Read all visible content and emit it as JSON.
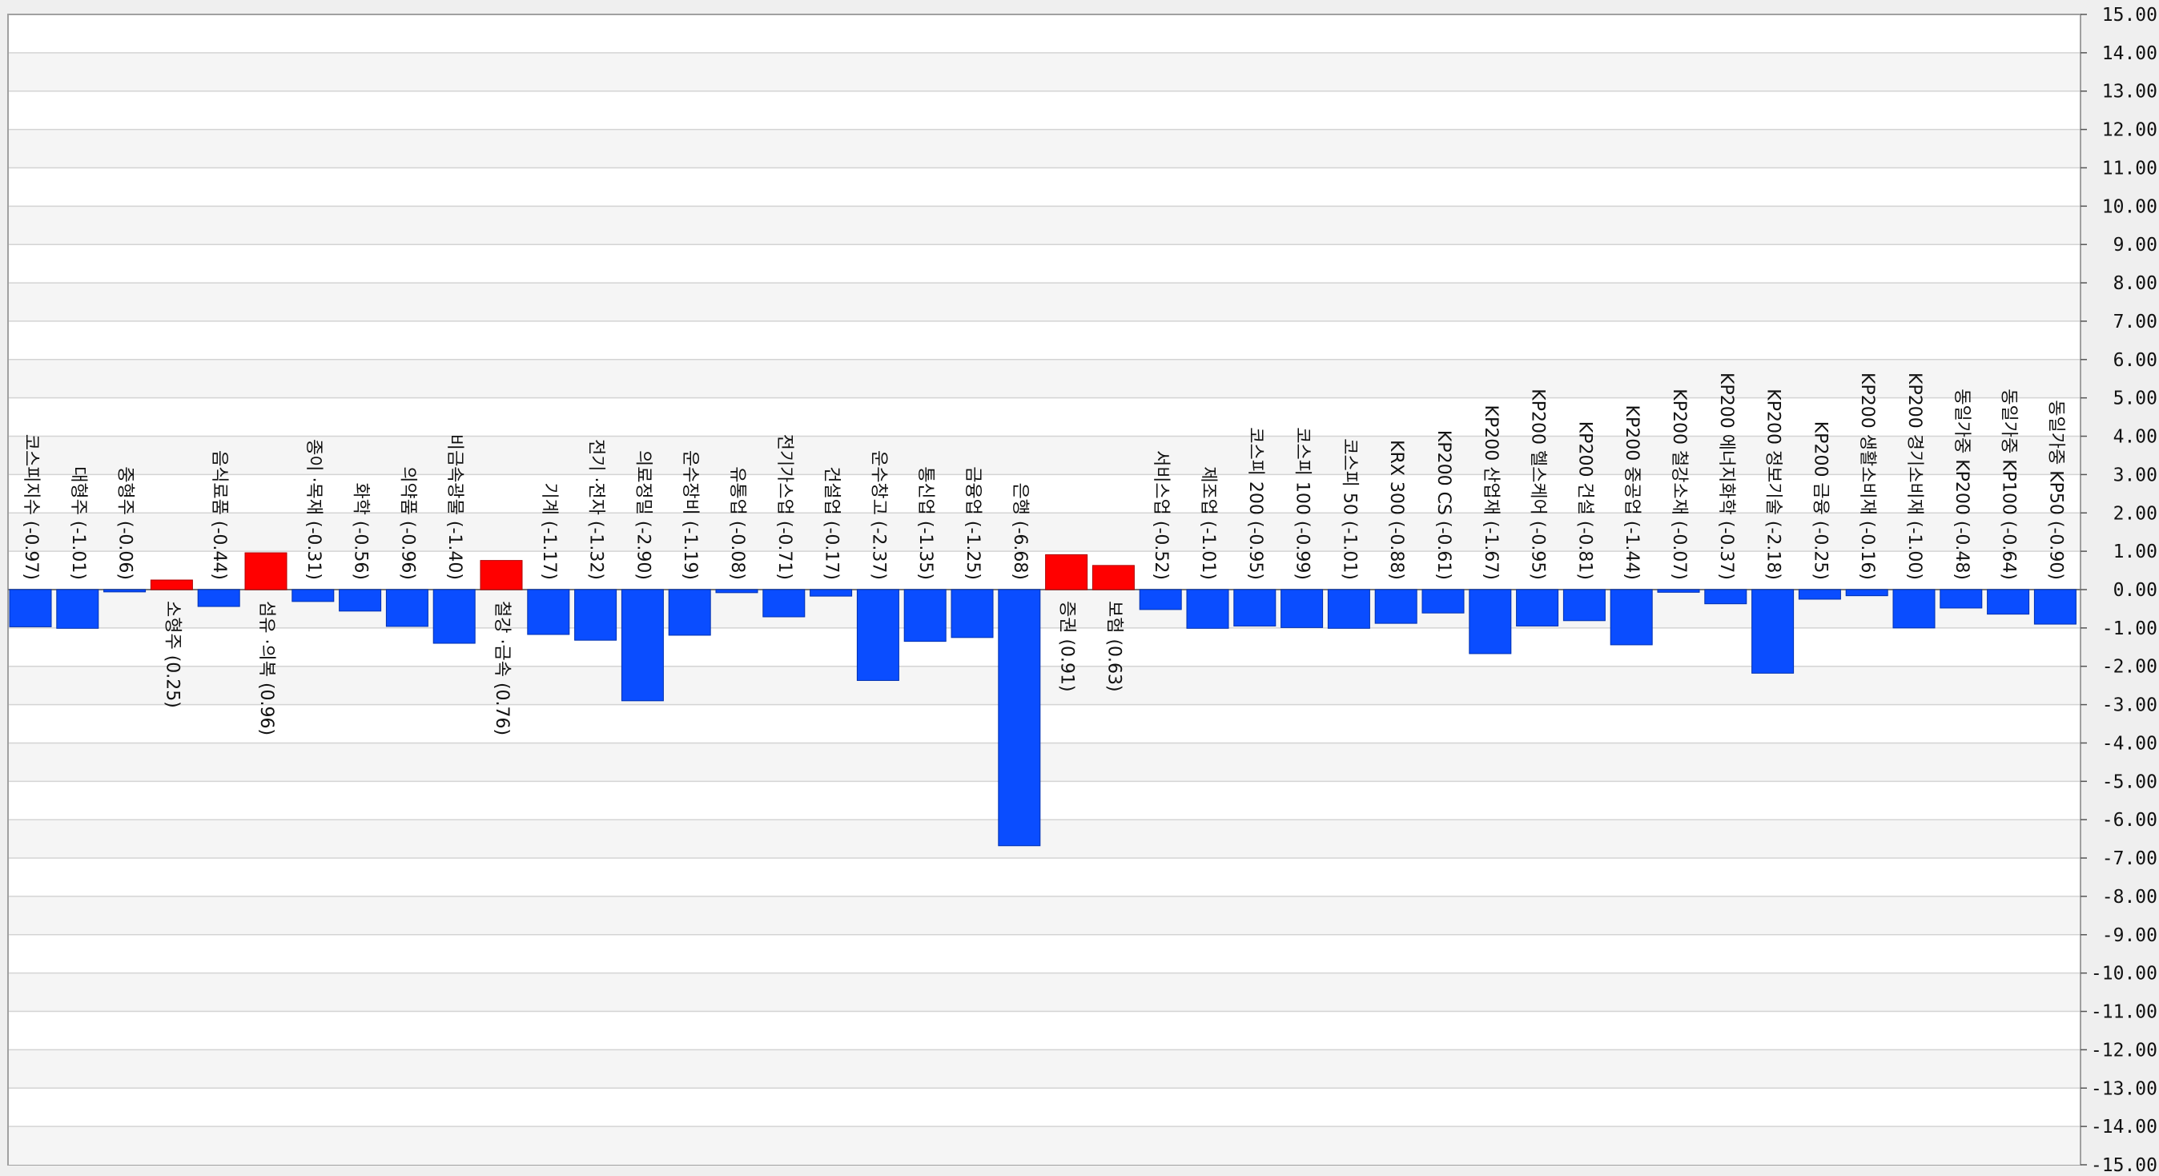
{
  "chart_data": {
    "type": "bar",
    "title": "",
    "xlabel": "",
    "ylabel": "",
    "ylim": [
      -15,
      15
    ],
    "ytick_step": 1,
    "y_axis_position": "right",
    "grid": true,
    "legend": "none",
    "colors": {
      "positive": "#ff0000",
      "negative": "#0a4dff",
      "plot_background": "#ffffff",
      "band_alt": "#f5f5f5",
      "grid": "#d4d4d4",
      "zero_line": "#777777"
    },
    "categories": [
      "코스피지수 (-0.97)",
      "대형주 (-1.01)",
      "중형주 (-0.06)",
      "소형주 (0.25)",
      "음식료품 (-0.44)",
      "섬유 ·의복 (0.96)",
      "종이 ·목재 (-0.31)",
      "화학 (-0.56)",
      "의약품 (-0.96)",
      "비금속광물 (-1.40)",
      "철강 ·금속 (0.76)",
      "기계 (-1.17)",
      "전기 ·전자 (-1.32)",
      "의료정밀 (-2.90)",
      "운수장비 (-1.19)",
      "유통업 (-0.08)",
      "전기가스업 (-0.71)",
      "건설업 (-0.17)",
      "운수창고 (-2.37)",
      "통신업 (-1.35)",
      "금융업 (-1.25)",
      "은행 (-6.68)",
      "증권 (0.91)",
      "보험 (0.63)",
      "서비스업 (-0.52)",
      "제조업 (-1.01)",
      "코스피 200 (-0.95)",
      "코스피 100 (-0.99)",
      "코스피 50 (-1.01)",
      "KRX 300 (-0.88)",
      "KP200 CS (-0.61)",
      "KP200 산업재 (-1.67)",
      "KP200 헬스케어 (-0.95)",
      "KP200 건설 (-0.81)",
      "KP200 중공업 (-1.44)",
      "KP200 철강소재 (-0.07)",
      "KP200 에너지화학 (-0.37)",
      "KP200 정보기술 (-2.18)",
      "KP200 금융 (-0.25)",
      "KP200 생활소비재 (-0.16)",
      "KP200 경기소비재 (-1.00)",
      "동일가중 KP200 (-0.48)",
      "동일가중 KP100 (-0.64)",
      "동일가중 KP50 (-0.90)"
    ],
    "values": [
      -0.97,
      -1.01,
      -0.06,
      0.25,
      -0.44,
      0.96,
      -0.31,
      -0.56,
      -0.96,
      -1.4,
      0.76,
      -1.17,
      -1.32,
      -2.9,
      -1.19,
      -0.08,
      -0.71,
      -0.17,
      -2.37,
      -1.35,
      -1.25,
      -6.68,
      0.91,
      0.63,
      -0.52,
      -1.01,
      -0.95,
      -0.99,
      -1.01,
      -0.88,
      -0.61,
      -1.67,
      -0.95,
      -0.81,
      -1.44,
      -0.07,
      -0.37,
      -2.18,
      -0.25,
      -0.16,
      -1.0,
      -0.48,
      -0.64,
      -0.9
    ]
  }
}
